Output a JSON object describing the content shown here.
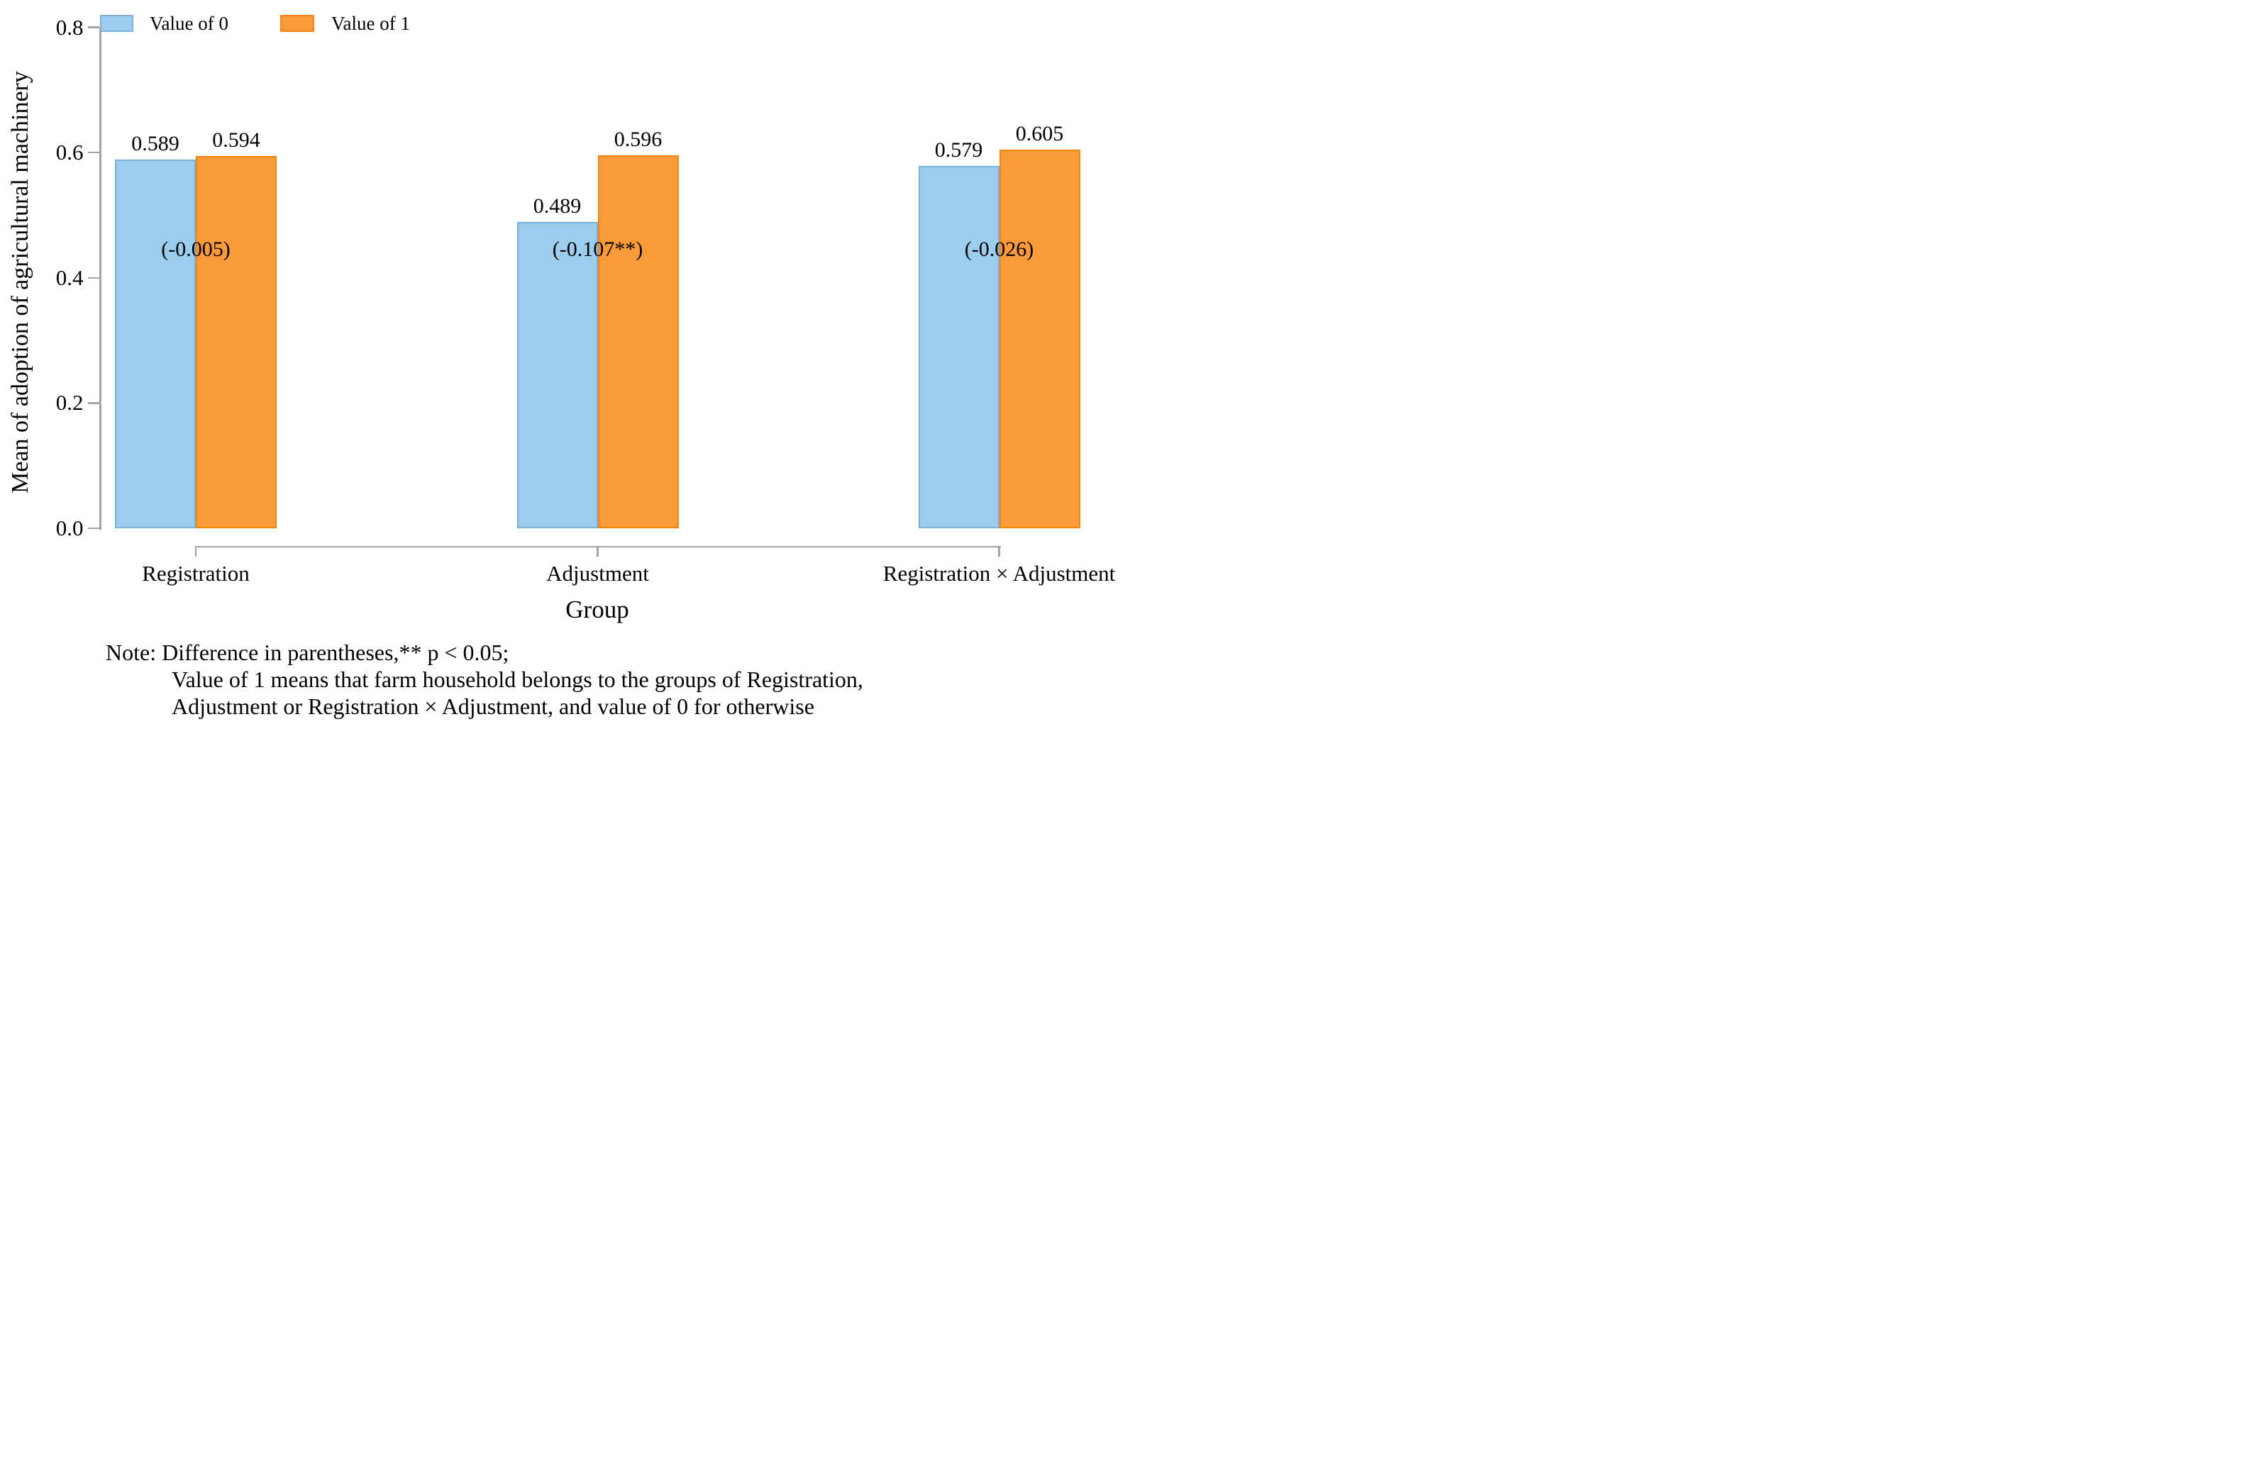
{
  "chart_data": {
    "type": "bar",
    "title": "",
    "categories": [
      "Registration",
      "Adjustment",
      "Registration × Adjustment"
    ],
    "series": [
      {
        "name": "Value of 0",
        "values": [
          0.589,
          0.489,
          0.579
        ],
        "fill": "#9ccdec",
        "border": "#7bb2dd"
      },
      {
        "name": "Value of 1",
        "values": [
          0.594,
          0.596,
          0.605
        ],
        "fill": "#fb9a38",
        "border": "#f28411"
      }
    ],
    "bar_value_labels": [
      [
        "0.589",
        "0.594"
      ],
      [
        "0.489",
        "0.596"
      ],
      [
        "0.579",
        "0.605"
      ]
    ],
    "difference_labels": [
      "(-0.005)",
      "(-0.107**)",
      "(-0.026)"
    ],
    "xlabel": "Group",
    "ylabel": "Mean of adoption of agricultural machinery",
    "ylim": [
      0,
      0.8
    ],
    "ytick_labels": [
      "0.0",
      "0.2",
      "0.4",
      "0.6",
      "0.8"
    ],
    "legend_position": "top-left",
    "grid": false,
    "axis_color": "#a3a3a3",
    "text_color": "#000000"
  },
  "note": {
    "lines": [
      "Note: Difference in parentheses,** p < 0.05;",
      "Value of 1 means that farm household belongs to the groups of Registration,",
      "Adjustment or Registration × Adjustment, and value of 0 for otherwise"
    ]
  }
}
